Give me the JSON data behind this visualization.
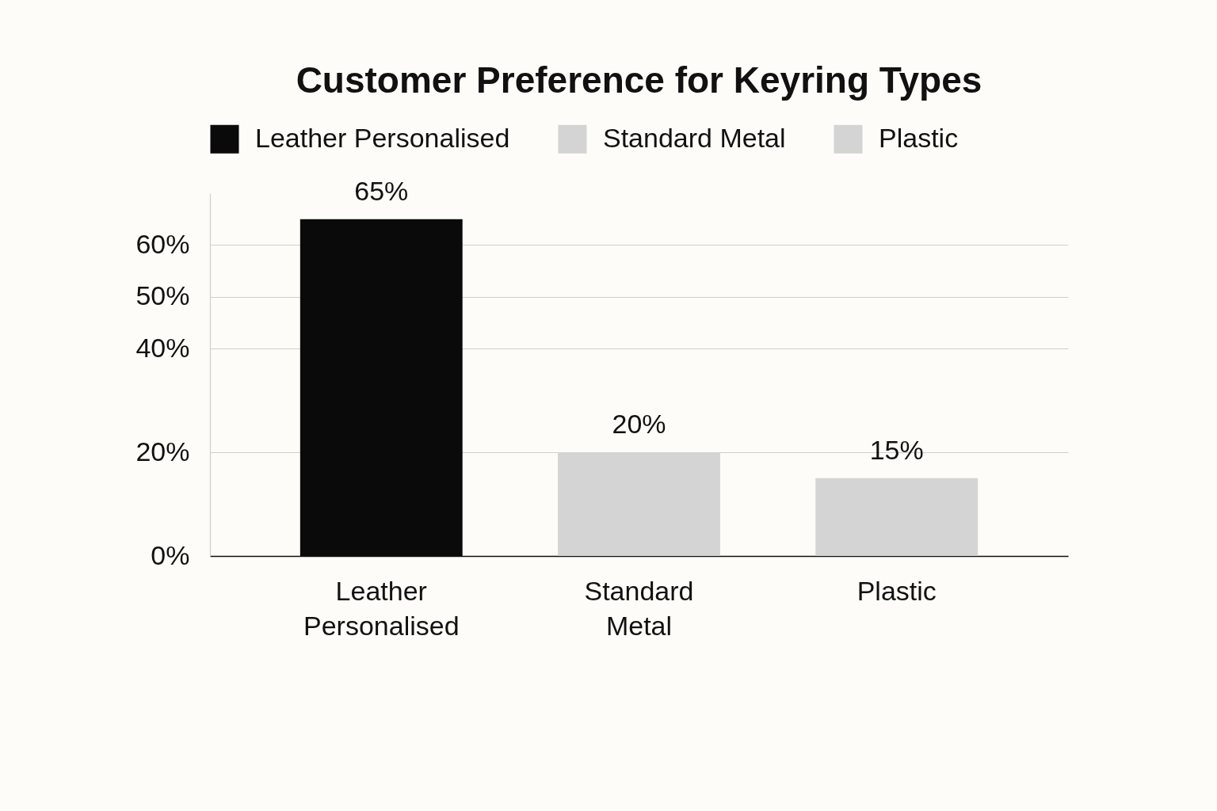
{
  "chart_data": {
    "type": "bar",
    "title": "Customer Preference for Keyring Types",
    "categories": [
      "Leather Personalised",
      "Standard Metal",
      "Plastic"
    ],
    "series": [
      {
        "name": "Leather Personalised",
        "color": "#0a0a0a",
        "values": [
          65,
          null,
          null
        ],
        "value_labels": [
          "65%",
          null,
          null
        ]
      },
      {
        "name": "Standard Metal",
        "color": "#d4d4d4",
        "values": [
          null,
          20,
          null
        ],
        "value_labels": [
          null,
          "20%",
          null
        ]
      },
      {
        "name": "Plastic",
        "color": "#d4d4d4",
        "values": [
          null,
          null,
          15
        ],
        "value_labels": [
          null,
          null,
          "15%"
        ]
      }
    ],
    "ylim": [
      0,
      70
    ],
    "yticks": [
      {
        "value": 0,
        "label": "0%"
      },
      {
        "value": 20,
        "label": "20%"
      },
      {
        "value": 40,
        "label": "40%"
      },
      {
        "value": 50,
        "label": "50%"
      },
      {
        "value": 60,
        "label": "60%"
      }
    ],
    "grid": "y",
    "legend": "top"
  }
}
